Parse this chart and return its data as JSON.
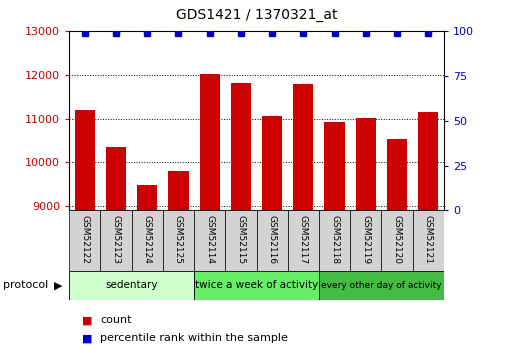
{
  "title": "GDS1421 / 1370321_at",
  "samples": [
    "GSM52122",
    "GSM52123",
    "GSM52124",
    "GSM52125",
    "GSM52114",
    "GSM52115",
    "GSM52116",
    "GSM52117",
    "GSM52118",
    "GSM52119",
    "GSM52120",
    "GSM52121"
  ],
  "counts": [
    11200,
    10350,
    9480,
    9800,
    12020,
    11820,
    11060,
    11780,
    10920,
    11020,
    10540,
    11150
  ],
  "ylim_left": [
    8900,
    13000
  ],
  "ylim_right": [
    0,
    100
  ],
  "yticks_left": [
    9000,
    10000,
    11000,
    12000,
    13000
  ],
  "yticks_right": [
    0,
    25,
    50,
    75,
    100
  ],
  "bar_color": "#cc0000",
  "dot_color": "#0000cc",
  "groups": [
    {
      "label": "sedentary",
      "start": 0,
      "end": 4,
      "color": "#ccffcc"
    },
    {
      "label": "twice a week of activity",
      "start": 4,
      "end": 8,
      "color": "#66ee66"
    },
    {
      "label": "every other day of activity",
      "start": 8,
      "end": 12,
      "color": "#44bb44"
    }
  ],
  "protocol_label": "protocol",
  "legend_count_label": "count",
  "legend_percentile_label": "percentile rank within the sample",
  "tick_label_color_left": "#cc0000",
  "tick_label_color_right": "#0000cc",
  "background_color": "#ffffff",
  "sample_box_color": "#d3d3d3"
}
